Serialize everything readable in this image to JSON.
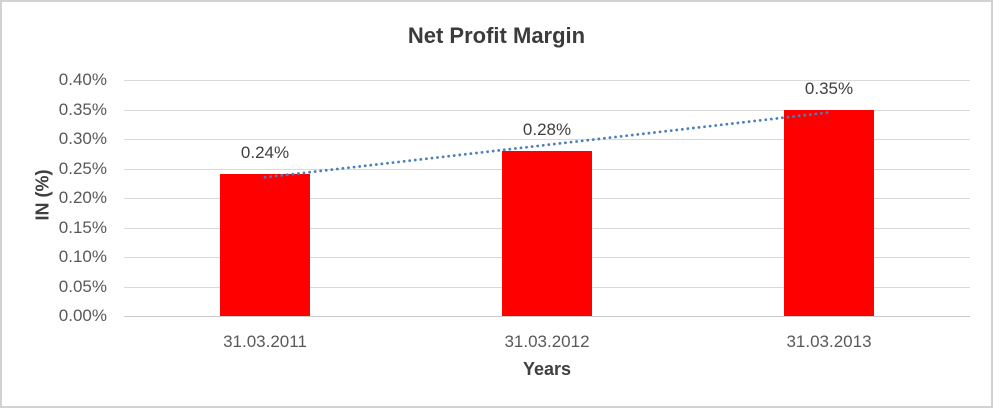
{
  "chart_data": {
    "type": "bar",
    "title": "Net Profit Margin",
    "xlabel": "Years",
    "ylabel": "IN (%)",
    "categories": [
      "31.03.2011",
      "31.03.2012",
      "31.03.2013"
    ],
    "values": [
      0.24,
      0.28,
      0.35
    ],
    "data_labels": [
      "0.24%",
      "0.28%",
      "0.35%"
    ],
    "ylim": [
      0,
      0.4
    ],
    "ytick_step": 0.05,
    "ytick_labels": [
      "0.00%",
      "0.05%",
      "0.10%",
      "0.15%",
      "0.20%",
      "0.25%",
      "0.30%",
      "0.35%",
      "0.40%"
    ],
    "grid": true,
    "legend": false,
    "bar_color": "#ff0000",
    "trendline": {
      "kind": "linear",
      "style": "dotted",
      "color": "#4a7ebd",
      "endpoint_values": [
        0.235,
        0.345
      ]
    }
  }
}
